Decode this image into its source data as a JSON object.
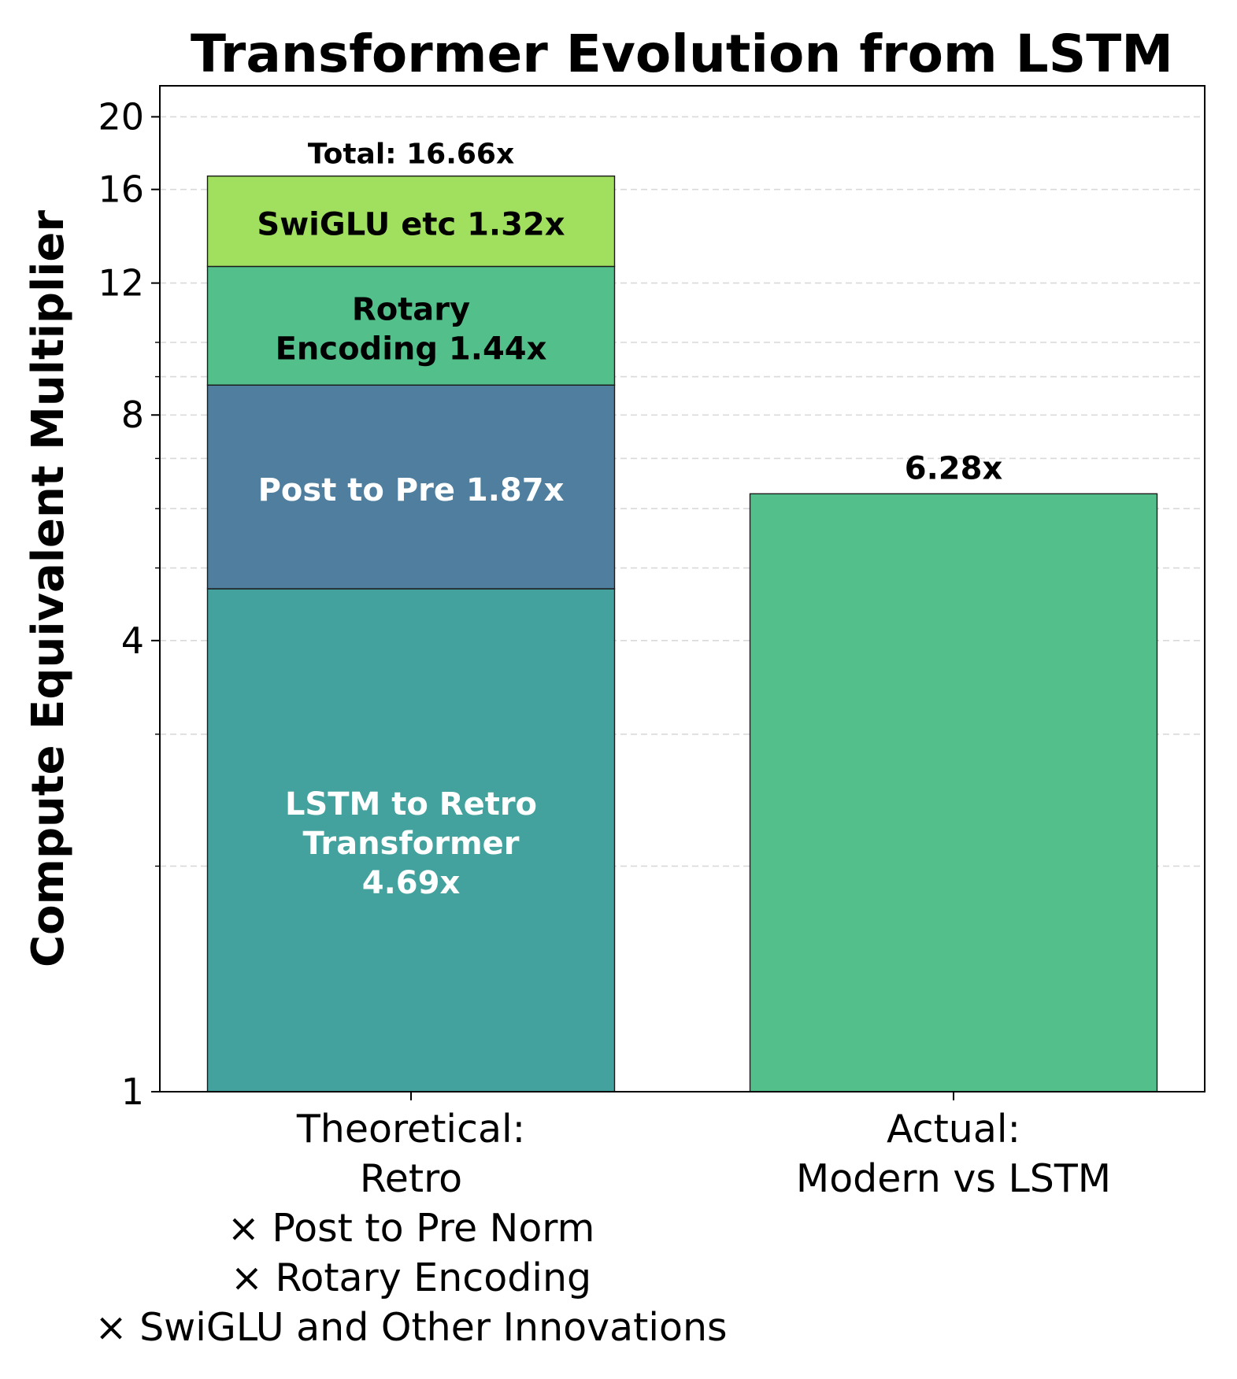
{
  "chart_data": {
    "type": "bar",
    "stacked": true,
    "title": "Transformer Evolution from LSTM",
    "xlabel": "",
    "ylabel": "Compute Equivalent Multiplier",
    "yscale": "log",
    "ylim": [
      1,
      22
    ],
    "yticks": [
      1,
      4,
      8,
      12,
      16,
      20
    ],
    "ytick_labels": [
      "1",
      "4",
      "8",
      "12",
      "16",
      "20"
    ],
    "grid": "horizontal dashed",
    "categories": [
      "Theoretical:\nRetro\n× Post to Pre Norm\n× Rotary Encoding\n× SwiGLU and Other Innovations",
      "Actual:\nModern vs LSTM"
    ],
    "stacked_bar": {
      "category": "Theoretical",
      "segments": [
        {
          "factor": 4.69,
          "label": "LSTM to Retro\nTransformer\n4.69x",
          "color": "#44a29e",
          "text_color": "#ffffff"
        },
        {
          "factor": 1.87,
          "label": "Post to Pre 1.87x",
          "color": "#4f7e9e",
          "text_color": "#ffffff"
        },
        {
          "factor": 1.44,
          "label": "Rotary\nEncoding 1.44x",
          "color": "#53c08c",
          "text_color": "#000000"
        },
        {
          "factor": 1.32,
          "label": "SwiGLU etc 1.32x",
          "color": "#a1df5f",
          "text_color": "#000000"
        }
      ],
      "total": 16.66,
      "total_label": "Total: 16.66x"
    },
    "single_bar": {
      "category": "Actual",
      "value": 6.28,
      "label": "6.28x",
      "color": "#53c08c"
    }
  }
}
